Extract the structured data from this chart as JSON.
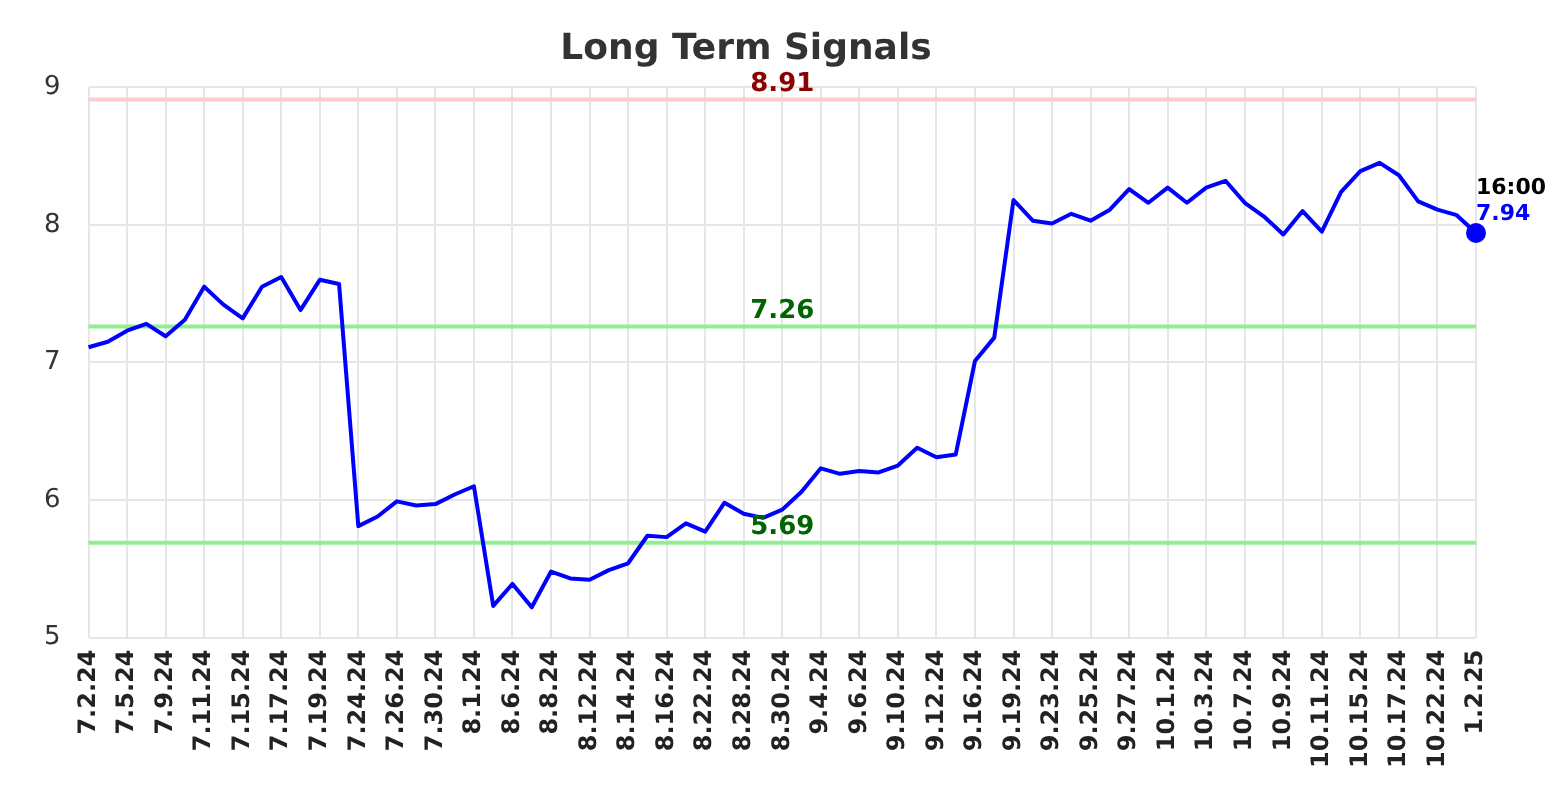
{
  "chart_data": {
    "type": "line",
    "title": "Long Term Signals",
    "categories": [
      "7.2.24",
      null,
      "7.5.24",
      null,
      "7.9.24",
      null,
      "7.11.24",
      null,
      "7.15.24",
      null,
      "7.17.24",
      null,
      "7.19.24",
      null,
      "7.24.24",
      null,
      "7.26.24",
      null,
      "7.30.24",
      null,
      "8.1.24",
      null,
      "8.6.24",
      null,
      "8.8.24",
      null,
      "8.12.24",
      null,
      "8.14.24",
      null,
      "8.16.24",
      null,
      "8.22.24",
      null,
      "8.28.24",
      null,
      "8.30.24",
      null,
      "9.4.24",
      null,
      "9.6.24",
      null,
      "9.10.24",
      null,
      "9.12.24",
      null,
      "9.16.24",
      null,
      "9.19.24",
      null,
      "9.23.24",
      null,
      "9.25.24",
      null,
      "9.27.24",
      null,
      "10.1.24",
      null,
      "10.3.24",
      null,
      "10.7.24",
      null,
      "10.9.24",
      null,
      "10.11.24",
      null,
      "10.15.24",
      null,
      "10.17.24",
      null,
      "10.22.24",
      null,
      "1.2.25"
    ],
    "series": [
      {
        "color": "#0000ff",
        "values": [
          7.11,
          7.15,
          7.23,
          7.28,
          7.19,
          7.31,
          7.55,
          7.42,
          7.32,
          7.55,
          7.62,
          7.38,
          7.6,
          7.57,
          5.81,
          5.88,
          5.99,
          5.96,
          5.97,
          6.04,
          6.1,
          5.23,
          5.39,
          5.22,
          5.48,
          5.43,
          5.42,
          5.49,
          5.54,
          5.74,
          5.73,
          5.83,
          5.77,
          5.98,
          5.9,
          5.87,
          5.93,
          6.06,
          6.23,
          6.19,
          6.21,
          6.2,
          6.25,
          6.38,
          6.31,
          6.33,
          7.01,
          7.18,
          8.18,
          8.03,
          8.01,
          8.08,
          8.03,
          8.11,
          8.26,
          8.16,
          8.27,
          8.16,
          8.27,
          8.32,
          8.16,
          8.06,
          7.93,
          8.1,
          7.95,
          8.24,
          8.39,
          8.45,
          8.36,
          8.17,
          8.11,
          8.07,
          7.94
        ],
        "value_labels": [
          null,
          null,
          null,
          null,
          null,
          null,
          null,
          null,
          null,
          null,
          null,
          null,
          null,
          null,
          null,
          null,
          null,
          null,
          null,
          null,
          null,
          null,
          null,
          null,
          null,
          null,
          null,
          null,
          null,
          null,
          null,
          null,
          null,
          null,
          null,
          null,
          null,
          null,
          null,
          null,
          null,
          null,
          null,
          null,
          null,
          null,
          null,
          null,
          null,
          null,
          null,
          null,
          null,
          null,
          null,
          null,
          null,
          null,
          null,
          null,
          null,
          null,
          null,
          null,
          null,
          null,
          null,
          null,
          null,
          null,
          null,
          null,
          "7.94"
        ]
      }
    ],
    "ylim": [
      5,
      9
    ],
    "yticks": [
      5,
      6,
      7,
      8,
      9
    ],
    "grid": true,
    "legend": false,
    "ref_lines": [
      {
        "axis": "y",
        "value": 8.91,
        "label": "8.91",
        "color": "#ffcccc"
      },
      {
        "axis": "y",
        "value": 7.26,
        "label": "7.26",
        "color": "#90ee90"
      },
      {
        "axis": "y",
        "value": 5.69,
        "label": "5.69",
        "color": "#90ee90"
      }
    ],
    "annotations": [
      {
        "text": "16:00",
        "x": "1.2.25",
        "y": 7.94
      }
    ]
  }
}
